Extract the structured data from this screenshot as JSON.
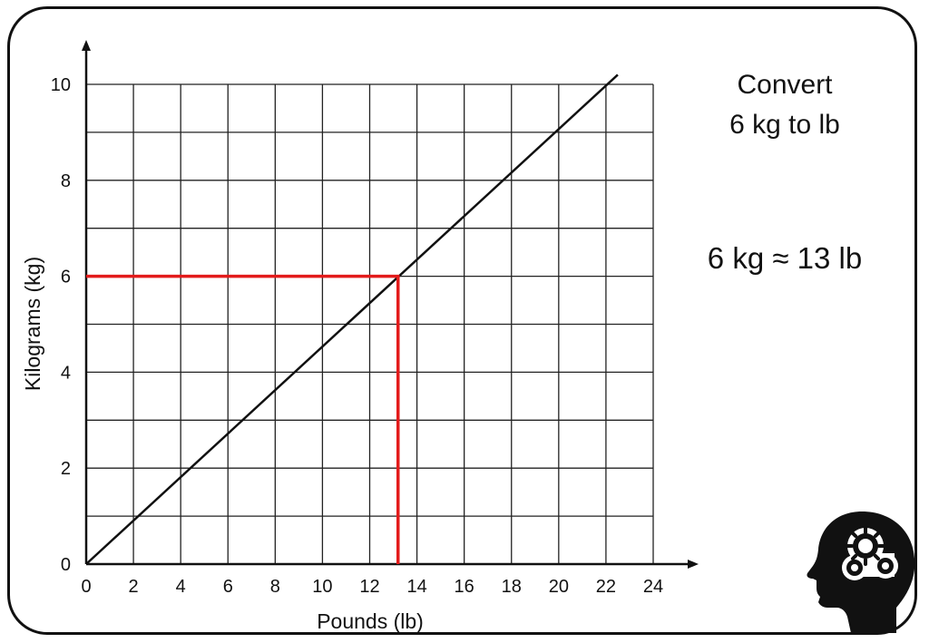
{
  "prompt": {
    "line1": "Convert",
    "line2": "6 kg to lb"
  },
  "answer": "6 kg ≈ 13 lb",
  "logo": "head-with-gears-icon",
  "colors": {
    "line": "#111111",
    "highlight": "#e31b1b",
    "grid": "#222222"
  },
  "chart_data": {
    "type": "line",
    "xlabel": "Pounds (lb)",
    "ylabel": "Kilograms (kg)",
    "xlim": [
      0,
      24
    ],
    "ylim": [
      0,
      10
    ],
    "x_ticks": [
      0,
      2,
      4,
      6,
      8,
      10,
      12,
      14,
      16,
      18,
      20,
      22,
      24
    ],
    "y_ticks": [
      0,
      2,
      4,
      6,
      8,
      10
    ],
    "grid": true,
    "series": [
      {
        "x": [
          0,
          22.5
        ],
        "y": [
          0,
          10.2
        ]
      }
    ],
    "reading": {
      "kg": 6,
      "lb": 13.2
    }
  }
}
